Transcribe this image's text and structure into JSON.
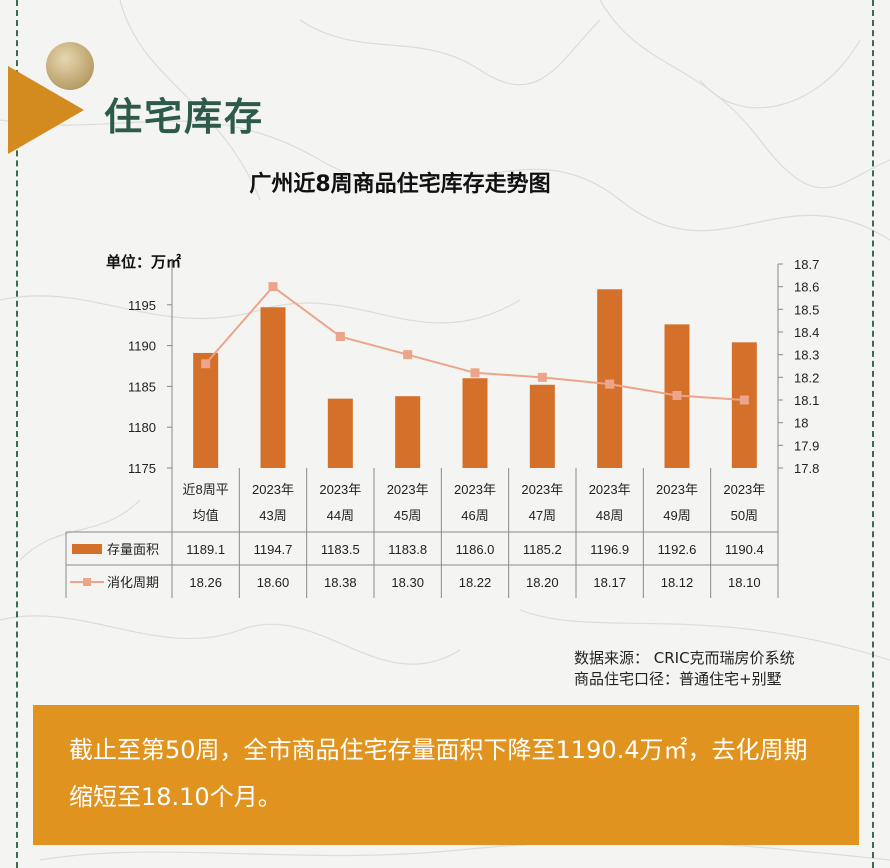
{
  "section_title": "住宅库存",
  "chart_title": "广州近8周商品住宅库存走势图",
  "unit_label": "单位：万㎡",
  "source_lines": [
    "数据来源： CRIC克而瑞房价系统",
    "商品住宅口径：普通住宅+别墅"
  ],
  "summary": "截止至第50周，全市商品住宅存量面积下降至1190.4万㎡，去化周期缩短至18.10个月。",
  "colors": {
    "bar": "#d4702a",
    "line": "#eca58a",
    "title_green": "#2d5a4a",
    "summary_bg": "#e0931f"
  },
  "chart_data": {
    "type": "bar",
    "categories": [
      [
        "近8周平",
        "均值"
      ],
      [
        "2023年",
        "43周"
      ],
      [
        "2023年",
        "44周"
      ],
      [
        "2023年",
        "45周"
      ],
      [
        "2023年",
        "46周"
      ],
      [
        "2023年",
        "47周"
      ],
      [
        "2023年",
        "48周"
      ],
      [
        "2023年",
        "49周"
      ],
      [
        "2023年",
        "50周"
      ]
    ],
    "series": [
      {
        "name": "存量面积",
        "type": "bar",
        "axis": "left",
        "values": [
          1189.1,
          1194.7,
          1183.5,
          1183.8,
          1186.0,
          1185.2,
          1196.9,
          1192.6,
          1190.4
        ],
        "labels": [
          "1189.1",
          "1194.7",
          "1183.5",
          "1183.8",
          "1186.0",
          "1185.2",
          "1196.9",
          "1192.6",
          "1190.4"
        ]
      },
      {
        "name": "消化周期",
        "type": "line",
        "axis": "right",
        "values": [
          18.26,
          18.6,
          18.38,
          18.3,
          18.22,
          18.2,
          18.17,
          18.12,
          18.1
        ],
        "labels": [
          "18.26",
          "18.60",
          "18.38",
          "18.30",
          "18.22",
          "18.20",
          "18.17",
          "18.12",
          "18.10"
        ]
      }
    ],
    "ylim": [
      1175,
      1200
    ],
    "yticks": [
      "1175",
      "1180",
      "1185",
      "1190",
      "1195"
    ],
    "y2lim": [
      17.8,
      18.7
    ],
    "y2ticks": [
      "17.8",
      "17.9",
      "18",
      "18.1",
      "18.2",
      "18.3",
      "18.4",
      "18.5",
      "18.6",
      "18.7"
    ],
    "grid": false,
    "legend": "data-table"
  }
}
